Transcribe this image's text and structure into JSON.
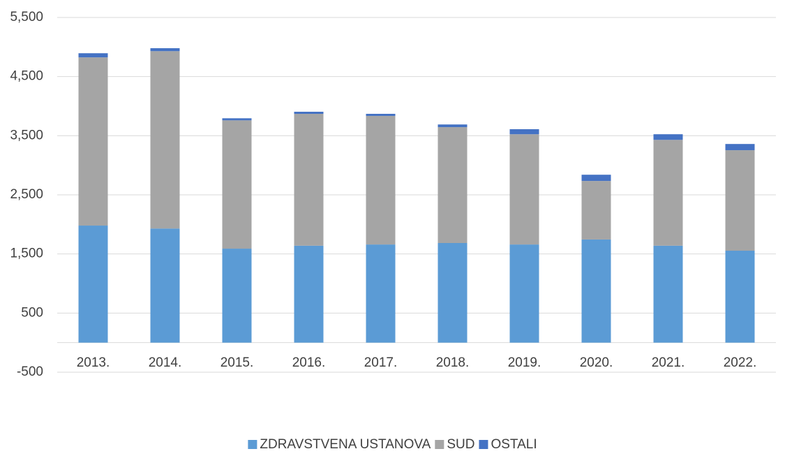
{
  "chart_data": {
    "type": "stacked_bar",
    "categories": [
      "2013.",
      "2014.",
      "2015.",
      "2016.",
      "2017.",
      "2018.",
      "2019.",
      "2020.",
      "2021.",
      "2022."
    ],
    "series": [
      {
        "name": "ZDRAVSTVENA USTANOVA",
        "color": "#5b9bd5",
        "values": [
          1980,
          1930,
          1590,
          1640,
          1660,
          1685,
          1660,
          1745,
          1640,
          1555
        ]
      },
      {
        "name": "SUD",
        "color": "#a5a5a5",
        "values": [
          2845,
          3000,
          2170,
          2230,
          2175,
          1960,
          1865,
          990,
          1790,
          1700
        ]
      },
      {
        "name": "OSTALI",
        "color": "#4472c4",
        "values": [
          70,
          50,
          35,
          35,
          35,
          45,
          85,
          105,
          95,
          105
        ]
      }
    ],
    "ylim": [
      -500,
      5500
    ],
    "yticks": [
      -500,
      500,
      {
        "value": 1500,
        "label": "1,500"
      },
      {
        "value": 2500,
        "label": "2,500"
      },
      {
        "value": 3500,
        "label": "3,500"
      },
      {
        "value": 4500,
        "label": "4,500"
      },
      {
        "value": 5500,
        "label": "5,500"
      }
    ],
    "grid": true,
    "legend": "bottom"
  }
}
